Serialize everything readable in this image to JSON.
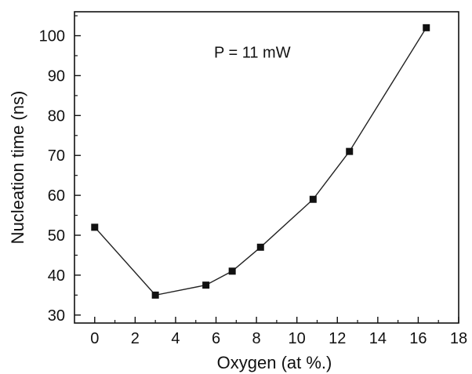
{
  "chart_data": {
    "type": "line",
    "title": "",
    "xlabel": "Oxygen (at %.)",
    "ylabel": "Nucleation time (ns)",
    "annotation": "P = 11 mW",
    "x": [
      0,
      3,
      5.5,
      6.8,
      8.2,
      10.8,
      12.6,
      16.4
    ],
    "y": [
      52,
      35,
      37.5,
      41,
      47,
      59,
      71,
      102
    ],
    "xlim": [
      -1,
      18
    ],
    "ylim": [
      28,
      106
    ],
    "xticks": [
      0,
      2,
      4,
      6,
      8,
      10,
      12,
      14,
      16,
      18
    ],
    "yticks": [
      30,
      40,
      50,
      60,
      70,
      80,
      90,
      100
    ],
    "marker": "square",
    "grid": false,
    "line_color": "#222222",
    "marker_color": "#111111"
  }
}
